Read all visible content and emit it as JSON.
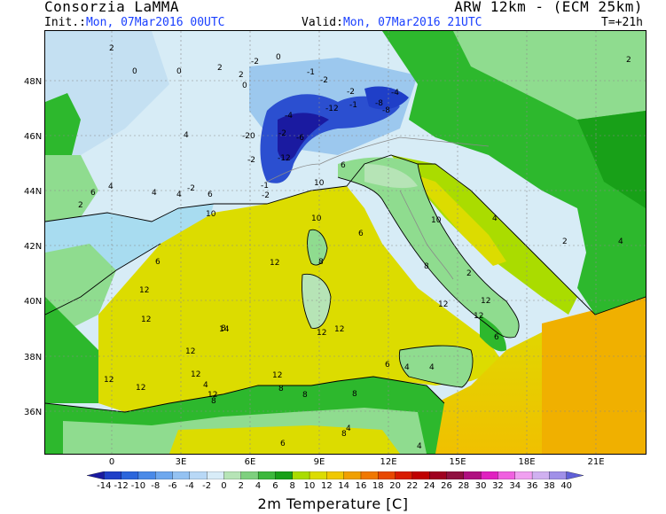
{
  "header": {
    "org": "Consorzia LaMMA",
    "model": "ARW 12km - (ECM 25km)",
    "init_label": "Init.:",
    "init_value": "Mon, 07Mar2016 00UTC",
    "valid_label": "Valid:",
    "valid_value": "Mon, 07Mar2016 21UTC",
    "step": "T=+21h"
  },
  "map": {
    "lat_ticks": [
      "48N",
      "46N",
      "44N",
      "42N",
      "40N",
      "38N",
      "36N"
    ],
    "lon_ticks": [
      "0",
      "3E",
      "6E",
      "9E",
      "12E",
      "15E",
      "18E",
      "21E"
    ],
    "colors": {
      "sea": "#dcdc00",
      "sea_south": "#f0b000",
      "land_green": "#2db82d",
      "land_light": "#8fdc8f",
      "cold_light": "#cfe8f5",
      "cold_mid": "#7ab8e8",
      "cold_dark": "#1c2fb0",
      "coast": "#000000"
    },
    "point_values": [
      {
        "v": "2"
      },
      {
        "v": "0"
      },
      {
        "v": "0"
      },
      {
        "v": "2"
      },
      {
        "v": "-2"
      },
      {
        "v": "0"
      },
      {
        "v": "2"
      },
      {
        "v": "0"
      },
      {
        "v": "-1"
      },
      {
        "v": "-2"
      },
      {
        "v": "-4"
      },
      {
        "v": "-12"
      },
      {
        "v": "-1"
      },
      {
        "v": "-8"
      },
      {
        "v": "-4"
      },
      {
        "v": "-8"
      },
      {
        "v": "-2"
      },
      {
        "v": "-20"
      },
      {
        "v": "-2"
      },
      {
        "v": "-12"
      },
      {
        "v": "-6"
      },
      {
        "v": "-2"
      },
      {
        "v": "-2"
      },
      {
        "v": "4"
      },
      {
        "v": "6"
      },
      {
        "v": "6"
      },
      {
        "v": "-1"
      },
      {
        "v": "-2"
      },
      {
        "v": "10"
      },
      {
        "v": "10"
      },
      {
        "v": "6"
      },
      {
        "v": "8"
      },
      {
        "v": "10"
      },
      {
        "v": "12"
      },
      {
        "v": "12"
      },
      {
        "v": "12"
      },
      {
        "v": "12"
      },
      {
        "v": "12"
      },
      {
        "v": "14"
      },
      {
        "v": "12"
      },
      {
        "v": "12"
      },
      {
        "v": "6"
      },
      {
        "v": "4"
      },
      {
        "v": "4"
      },
      {
        "v": "2"
      },
      {
        "v": "6"
      },
      {
        "v": "8"
      },
      {
        "v": "12"
      },
      {
        "v": "12"
      },
      {
        "v": "10"
      },
      {
        "v": "12"
      },
      {
        "v": "12"
      },
      {
        "v": "12"
      },
      {
        "v": "12"
      },
      {
        "v": "12"
      },
      {
        "v": "8"
      },
      {
        "v": "8"
      },
      {
        "v": "8"
      },
      {
        "v": "8"
      },
      {
        "v": "6"
      },
      {
        "v": "4"
      },
      {
        "v": "4"
      },
      {
        "v": "4"
      },
      {
        "v": "6"
      },
      {
        "v": "4"
      },
      {
        "v": "2"
      },
      {
        "v": "6"
      },
      {
        "v": "8"
      },
      {
        "v": "8"
      },
      {
        "v": "4"
      },
      {
        "v": "4"
      },
      {
        "v": "4"
      },
      {
        "v": "2"
      },
      {
        "v": "2"
      },
      {
        "v": "4"
      }
    ]
  },
  "colorbar": {
    "title": "2m Temperature [C]",
    "labels": [
      "-14",
      "-12",
      "-10",
      "-8",
      "-6",
      "-4",
      "-2",
      "0",
      "2",
      "4",
      "6",
      "8",
      "10",
      "12",
      "14",
      "16",
      "18",
      "20",
      "22",
      "24",
      "26",
      "28",
      "30",
      "32",
      "34",
      "36",
      "38",
      "40"
    ],
    "colors": [
      "#1a1aa0",
      "#1f3fc8",
      "#2b66dc",
      "#4a8ae8",
      "#6ea8ee",
      "#94c2f2",
      "#b8d8f6",
      "#d8ecf8",
      "#b6e4b6",
      "#7ed07e",
      "#3cb83c",
      "#18a018",
      "#aadc00",
      "#dcdc00",
      "#f0c800",
      "#f0a000",
      "#f07800",
      "#e84800",
      "#d81c00",
      "#c00000",
      "#a00020",
      "#901040",
      "#b01080",
      "#e020c0",
      "#f060e0",
      "#f0a0f0",
      "#d0b0f0",
      "#a090e8",
      "#6060d8"
    ]
  }
}
